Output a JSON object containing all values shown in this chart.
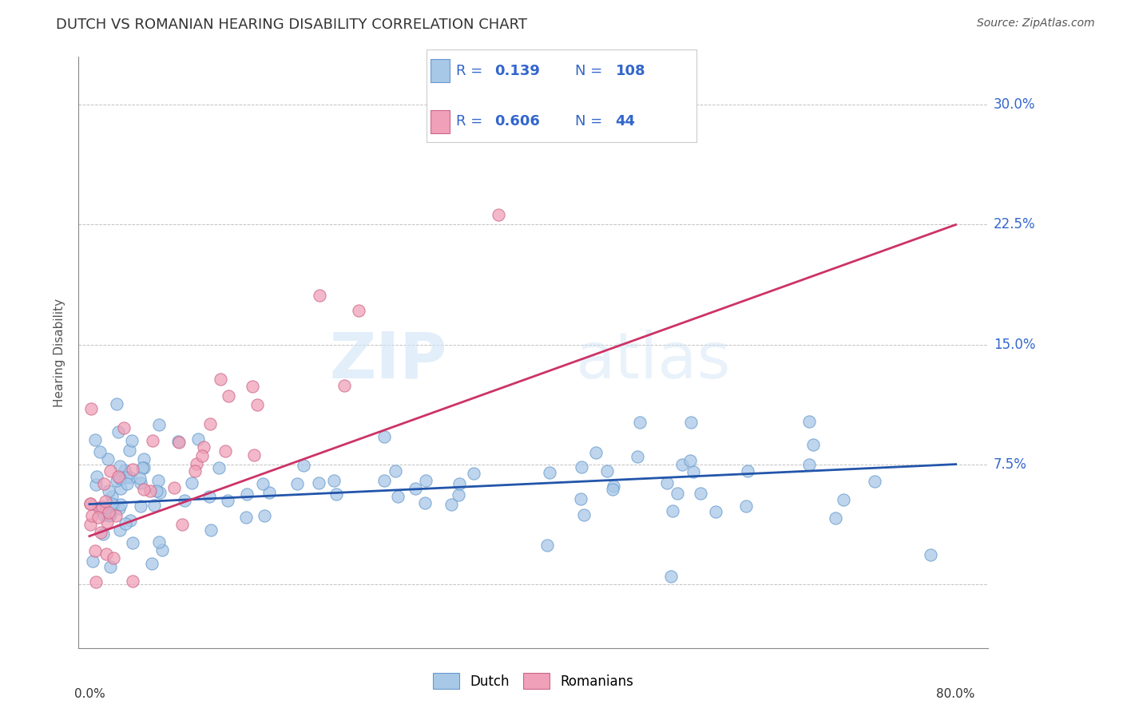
{
  "title": "DUTCH VS ROMANIAN HEARING DISABILITY CORRELATION CHART",
  "source": "Source: ZipAtlas.com",
  "ylabel": "Hearing Disability",
  "dutch_color": "#A8C8E8",
  "dutch_edge_color": "#6699CC",
  "romanian_color": "#F0A0B8",
  "romanian_edge_color": "#CC6688",
  "dutch_line_color": "#2255AA",
  "romanian_line_color": "#CC3366",
  "dutch_R": 0.139,
  "dutch_N": 108,
  "romanian_R": 0.606,
  "romanian_N": 44,
  "legend_text_color": "#3366CC",
  "title_color": "#333333",
  "ytick_color": "#3366CC",
  "title_fontsize": 13,
  "source_fontsize": 10,
  "ytick_fontsize": 12,
  "legend_fontsize": 13
}
